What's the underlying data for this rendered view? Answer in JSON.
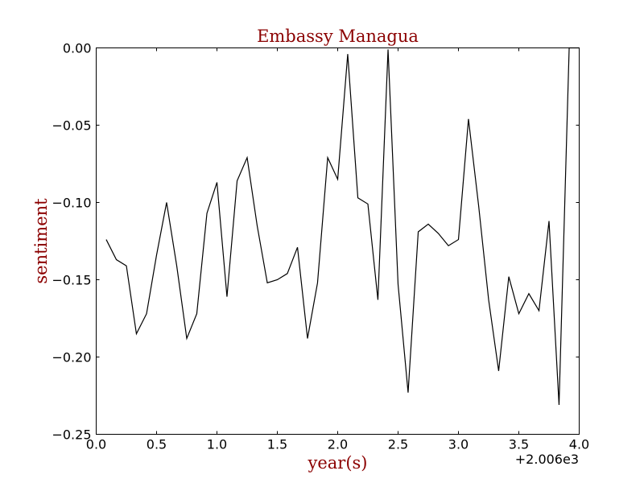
{
  "chart_data": {
    "type": "line",
    "title": "Embassy Managua",
    "xlabel": "year(s)",
    "ylabel": "sentiment",
    "x_offset_label": "+2.006e3",
    "xlim": [
      0.0,
      4.0
    ],
    "ylim": [
      -0.25,
      0.0
    ],
    "x_ticks": [
      0.0,
      0.5,
      1.0,
      1.5,
      2.0,
      2.5,
      3.0,
      3.5,
      4.0
    ],
    "x_tick_labels": [
      "0.0",
      "0.5",
      "1.0",
      "1.5",
      "2.0",
      "2.5",
      "3.0",
      "3.5",
      "4.0"
    ],
    "y_ticks": [
      0.0,
      -0.05,
      -0.1,
      -0.15,
      -0.2,
      -0.25
    ],
    "y_tick_labels": [
      "0.00",
      "−0.05",
      "−0.10",
      "−0.15",
      "−0.20",
      "−0.25"
    ],
    "grid": false,
    "colors": {
      "line": "#000000",
      "title": "#8b0000",
      "axis_label": "#8b0000",
      "axes": "#000000"
    },
    "series": [
      {
        "x": [
          0.083,
          0.167,
          0.25,
          0.333,
          0.417,
          0.5,
          0.583,
          0.667,
          0.75,
          0.833,
          0.917,
          1.0,
          1.083,
          1.167,
          1.25,
          1.333,
          1.417,
          1.5,
          1.583,
          1.667,
          1.75,
          1.833,
          1.917,
          2.0,
          2.083,
          2.167,
          2.25,
          2.333,
          2.417,
          2.5,
          2.583,
          2.667,
          2.75,
          2.833,
          2.917,
          3.0,
          3.083,
          3.167,
          3.25,
          3.333,
          3.417,
          3.5,
          3.583,
          3.667,
          3.75,
          3.833,
          3.917,
          4.0
        ],
        "values": [
          -0.124,
          -0.137,
          -0.141,
          -0.185,
          -0.172,
          -0.134,
          -0.1,
          -0.141,
          -0.188,
          -0.172,
          -0.107,
          -0.087,
          -0.161,
          -0.086,
          -0.071,
          -0.115,
          -0.152,
          -0.15,
          -0.146,
          -0.129,
          -0.188,
          -0.152,
          -0.071,
          -0.085,
          -0.004,
          -0.097,
          -0.101,
          -0.163,
          -0.001,
          -0.153,
          -0.223,
          -0.119,
          -0.114,
          -0.12,
          -0.128,
          -0.124,
          -0.046,
          -0.102,
          -0.163,
          -0.209,
          -0.148,
          -0.172,
          -0.159,
          -0.17,
          -0.112,
          -0.231,
          0.0,
          0.0
        ]
      }
    ]
  }
}
